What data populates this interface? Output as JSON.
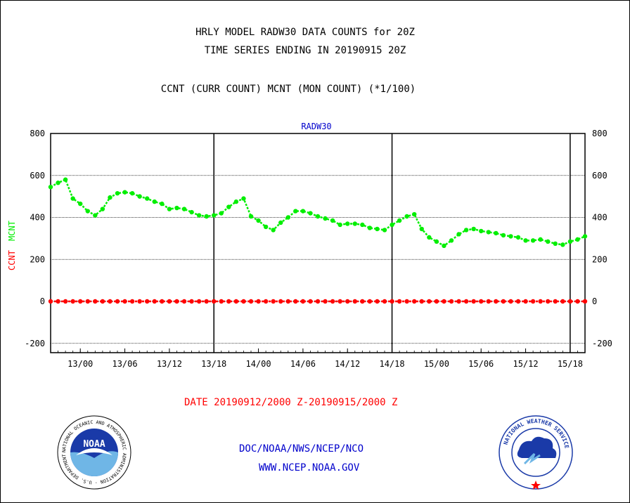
{
  "header": {
    "title_line1": "HRLY MODEL RADW30 DATA COUNTS for 20Z",
    "title_line2": "TIME SERIES ENDING IN 20190915 20Z",
    "subtitle": "CCNT (CURR COUNT) MCNT (MON COUNT) (*1/100)"
  },
  "footer": {
    "date_range": "DATE 20190912/2000 Z-20190915/2000 Z",
    "doc": "DOC/NOAA/NWS/NCEP/NCO",
    "website": "WWW.NCEP.NOAA.GOV"
  },
  "logos": {
    "noaa_text": "NOAA",
    "noaa_ring": "NATIONAL OCEANIC AND ATMOSPHERIC ADMINISTRATION · U.S. DEPARTMENT OF COMMERCE",
    "nws_ring": "NATIONAL WEATHER SERVICE"
  },
  "colors": {
    "mcnt": "#00ee00",
    "ccnt": "#ff0000",
    "panel_label": "#0000cc",
    "axes": "#000000"
  },
  "chart_data": {
    "type": "line",
    "panel_label": "RADW30",
    "ylabel_left": [
      "CCNT",
      "MCNT"
    ],
    "yticks": [
      800,
      600,
      400,
      200,
      0,
      -200
    ],
    "ylim": [
      -240,
      800
    ],
    "x_start_hour": 0,
    "x_end_hour": 72,
    "xlim_hours": [
      0,
      72
    ],
    "x_tick_labels": [
      {
        "hour": 4,
        "label": "13/00"
      },
      {
        "hour": 10,
        "label": "13/06"
      },
      {
        "hour": 16,
        "label": "13/12"
      },
      {
        "hour": 22,
        "label": "13/18"
      },
      {
        "hour": 28,
        "label": "14/00"
      },
      {
        "hour": 34,
        "label": "14/06"
      },
      {
        "hour": 40,
        "label": "14/12"
      },
      {
        "hour": 46,
        "label": "14/18"
      },
      {
        "hour": 52,
        "label": "15/00"
      },
      {
        "hour": 58,
        "label": "15/06"
      },
      {
        "hour": 64,
        "label": "15/12"
      },
      {
        "hour": 70,
        "label": "15/18"
      }
    ],
    "day_boundaries_hours": [
      22,
      46,
      70
    ],
    "grid": true,
    "series": [
      {
        "name": "MCNT",
        "color": "#00ee00",
        "values": [
          545,
          565,
          580,
          490,
          465,
          430,
          410,
          440,
          495,
          515,
          520,
          515,
          500,
          490,
          475,
          465,
          440,
          445,
          440,
          425,
          410,
          405,
          410,
          420,
          450,
          475,
          490,
          405,
          385,
          355,
          340,
          375,
          400,
          430,
          430,
          420,
          405,
          395,
          385,
          365,
          370,
          370,
          365,
          350,
          345,
          340,
          365,
          385,
          405,
          415,
          345,
          305,
          285,
          265,
          290,
          320,
          340,
          345,
          335,
          330,
          325,
          315,
          310,
          305,
          290,
          290,
          295,
          285,
          275,
          270,
          285,
          295,
          310
        ]
      },
      {
        "name": "CCNT",
        "color": "#ff0000",
        "values": [
          0,
          0,
          0,
          0,
          0,
          0,
          0,
          0,
          0,
          0,
          0,
          0,
          0,
          0,
          0,
          0,
          0,
          0,
          0,
          0,
          0,
          0,
          0,
          0,
          0,
          0,
          0,
          0,
          0,
          0,
          0,
          0,
          0,
          0,
          0,
          0,
          0,
          0,
          0,
          0,
          0,
          0,
          0,
          0,
          0,
          0,
          0,
          0,
          0,
          0,
          0,
          0,
          0,
          0,
          0,
          0,
          0,
          0,
          0,
          0,
          0,
          0,
          0,
          0,
          0,
          0,
          0,
          0,
          0,
          0,
          0,
          0,
          0
        ]
      }
    ]
  }
}
